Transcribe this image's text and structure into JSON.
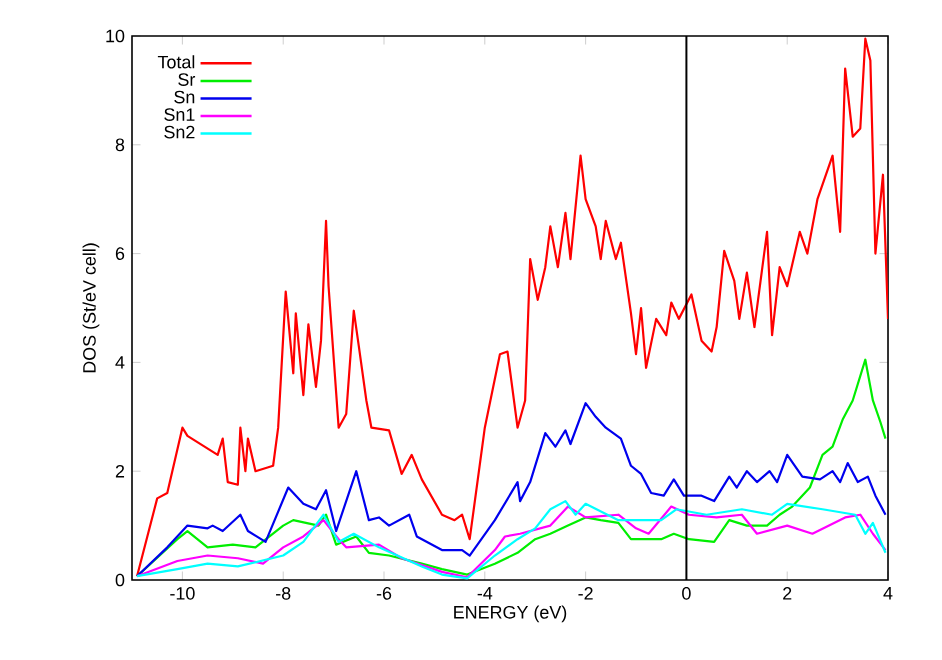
{
  "chart_data": {
    "type": "line",
    "xlabel": "ENERGY (eV)",
    "ylabel": "DOS (St/eV cell)",
    "xlim": [
      -11,
      4
    ],
    "ylim": [
      0,
      10
    ],
    "xticks": [
      -10,
      -8,
      -6,
      -4,
      -2,
      0,
      2,
      4
    ],
    "yticks": [
      0,
      2,
      4,
      6,
      8,
      10
    ],
    "legend": "top left",
    "marker": "none",
    "line_style": "solid",
    "grid": false,
    "ref_lines": [
      {
        "axis": "x",
        "value": 0,
        "color": "#000000"
      }
    ],
    "series": [
      {
        "name": "Total",
        "color": "#ff0000",
        "x": [
          -10.9,
          -10.5,
          -10.3,
          -10,
          -9.9,
          -9.3,
          -9.2,
          -9.1,
          -8.9,
          -8.85,
          -8.75,
          -8.7,
          -8.55,
          -8.2,
          -8.1,
          -7.95,
          -7.8,
          -7.75,
          -7.6,
          -7.5,
          -7.35,
          -7.25,
          -7.15,
          -7.1,
          -6.9,
          -6.75,
          -6.6,
          -6.5,
          -6.35,
          -6.25,
          -5.9,
          -5.65,
          -5.45,
          -5.25,
          -4.85,
          -4.6,
          -4.45,
          -4.3,
          -4.0,
          -3.7,
          -3.55,
          -3.35,
          -3.2,
          -3.1,
          -2.95,
          -2.8,
          -2.7,
          -2.55,
          -2.4,
          -2.3,
          -2.1,
          -2.0,
          -1.8,
          -1.7,
          -1.6,
          -1.4,
          -1.3,
          -1.1,
          -1.0,
          -0.9,
          -0.8,
          -0.6,
          -0.4,
          -0.3,
          -0.15,
          0.1,
          0.3,
          0.5,
          0.6,
          0.75,
          0.95,
          1.05,
          1.2,
          1.35,
          1.6,
          1.7,
          1.85,
          2.0,
          2.25,
          2.4,
          2.6,
          2.75,
          2.9,
          3.05,
          3.15,
          3.3,
          3.45,
          3.55,
          3.65,
          3.75,
          3.9,
          4.0
        ],
        "values": [
          0.07,
          1.5,
          1.6,
          2.8,
          2.65,
          2.3,
          2.6,
          1.8,
          1.75,
          2.8,
          2.0,
          2.6,
          2.0,
          2.1,
          2.8,
          5.3,
          3.8,
          4.9,
          3.4,
          4.7,
          3.55,
          4.4,
          6.6,
          5.4,
          2.8,
          3.05,
          4.95,
          4.3,
          3.3,
          2.8,
          2.75,
          1.95,
          2.3,
          1.85,
          1.2,
          1.1,
          1.2,
          0.75,
          2.8,
          4.15,
          4.2,
          2.8,
          3.3,
          5.9,
          5.15,
          5.75,
          6.5,
          5.75,
          6.75,
          5.9,
          7.8,
          7.0,
          6.5,
          5.9,
          6.6,
          5.9,
          6.2,
          4.9,
          4.15,
          5.0,
          3.9,
          4.8,
          4.5,
          5.1,
          4.8,
          5.25,
          4.4,
          4.2,
          4.65,
          6.05,
          5.5,
          4.8,
          5.65,
          4.65,
          6.4,
          4.5,
          5.75,
          5.4,
          6.4,
          6.0,
          7.0,
          7.4,
          7.8,
          6.4,
          9.4,
          8.15,
          8.3,
          9.95,
          9.55,
          6.0,
          7.45,
          4.8
        ]
      },
      {
        "name": "Sr",
        "color": "#00ee00",
        "x": [
          -10.9,
          -10.1,
          -9.9,
          -9.5,
          -9.0,
          -8.55,
          -8.0,
          -7.8,
          -7.3,
          -7.15,
          -6.95,
          -6.55,
          -6.3,
          -5.9,
          -5.25,
          -4.85,
          -4.35,
          -3.8,
          -3.35,
          -3.0,
          -2.7,
          -2.35,
          -2.0,
          -1.7,
          -1.35,
          -1.1,
          -0.5,
          -0.25,
          0.05,
          0.55,
          0.85,
          1.2,
          1.6,
          1.85,
          2.1,
          2.45,
          2.7,
          2.9,
          3.1,
          3.3,
          3.55,
          3.7,
          3.85,
          3.95
        ],
        "values": [
          0.07,
          0.75,
          0.9,
          0.6,
          0.65,
          0.6,
          1.0,
          1.1,
          1.0,
          1.2,
          0.65,
          0.8,
          0.5,
          0.45,
          0.3,
          0.2,
          0.1,
          0.3,
          0.5,
          0.75,
          0.85,
          1.0,
          1.15,
          1.1,
          1.05,
          0.75,
          0.75,
          0.85,
          0.75,
          0.7,
          1.1,
          1.0,
          1.0,
          1.2,
          1.35,
          1.7,
          2.3,
          2.45,
          2.95,
          3.3,
          4.05,
          3.3,
          2.9,
          2.6
        ]
      },
      {
        "name": "Sn",
        "color": "#0000ee",
        "x": [
          -10.9,
          -10.3,
          -9.9,
          -9.5,
          -9.4,
          -9.2,
          -8.85,
          -8.7,
          -8.35,
          -7.9,
          -7.6,
          -7.35,
          -7.15,
          -6.95,
          -6.55,
          -6.3,
          -6.1,
          -5.9,
          -5.5,
          -5.35,
          -4.85,
          -4.45,
          -4.3,
          -3.8,
          -3.35,
          -3.3,
          -3.1,
          -2.8,
          -2.6,
          -2.4,
          -2.3,
          -2.0,
          -1.8,
          -1.6,
          -1.3,
          -1.1,
          -0.9,
          -0.7,
          -0.45,
          -0.25,
          -0.05,
          0.3,
          0.55,
          0.85,
          1.0,
          1.2,
          1.4,
          1.65,
          1.8,
          2.0,
          2.3,
          2.65,
          2.9,
          3.05,
          3.2,
          3.4,
          3.6,
          3.75,
          3.95
        ],
        "values": [
          0.07,
          0.6,
          1.0,
          0.95,
          1.0,
          0.9,
          1.2,
          0.9,
          0.7,
          1.7,
          1.4,
          1.3,
          1.65,
          0.9,
          2.0,
          1.1,
          1.15,
          1.0,
          1.2,
          0.8,
          0.55,
          0.55,
          0.45,
          1.1,
          1.8,
          1.45,
          1.8,
          2.7,
          2.45,
          2.75,
          2.5,
          3.25,
          3.0,
          2.8,
          2.6,
          2.1,
          1.95,
          1.6,
          1.55,
          1.85,
          1.55,
          1.55,
          1.45,
          1.9,
          1.7,
          2.0,
          1.8,
          2.0,
          1.8,
          2.3,
          1.9,
          1.85,
          2.0,
          1.8,
          2.15,
          1.8,
          1.9,
          1.55,
          1.2
        ]
      },
      {
        "name": "Sn1",
        "color": "#ff00ff",
        "x": [
          -10.9,
          -10.1,
          -9.5,
          -8.9,
          -8.4,
          -8.0,
          -7.6,
          -7.2,
          -6.9,
          -6.75,
          -6.1,
          -5.65,
          -4.85,
          -4.35,
          -3.8,
          -3.6,
          -3.3,
          -2.7,
          -2.35,
          -2.0,
          -1.35,
          -1.0,
          -0.75,
          -0.3,
          0.05,
          0.6,
          1.1,
          1.4,
          2.0,
          2.5,
          3.15,
          3.45,
          3.7,
          3.95
        ],
        "values": [
          0.07,
          0.35,
          0.45,
          0.4,
          0.3,
          0.6,
          0.8,
          1.1,
          0.75,
          0.6,
          0.65,
          0.4,
          0.15,
          0.05,
          0.55,
          0.8,
          0.85,
          1.0,
          1.35,
          1.15,
          1.2,
          0.95,
          0.85,
          1.35,
          1.2,
          1.15,
          1.2,
          0.85,
          1.0,
          0.85,
          1.15,
          1.2,
          0.85,
          0.55
        ]
      },
      {
        "name": "Sn2",
        "color": "#00ffff",
        "x": [
          -10.9,
          -10.1,
          -9.5,
          -8.9,
          -8.0,
          -7.6,
          -7.2,
          -6.9,
          -6.6,
          -6.1,
          -5.25,
          -4.85,
          -4.35,
          -3.8,
          -3.35,
          -3.0,
          -2.7,
          -2.4,
          -2.2,
          -2.0,
          -1.35,
          -0.5,
          -0.2,
          0.4,
          1.1,
          1.7,
          2.0,
          2.7,
          3.35,
          3.55,
          3.7,
          3.95
        ],
        "values": [
          0.07,
          0.2,
          0.3,
          0.25,
          0.45,
          0.7,
          1.2,
          0.7,
          0.85,
          0.6,
          0.25,
          0.1,
          0.03,
          0.45,
          0.75,
          0.95,
          1.3,
          1.45,
          1.2,
          1.4,
          1.1,
          1.1,
          1.3,
          1.2,
          1.3,
          1.2,
          1.4,
          1.3,
          1.2,
          0.85,
          1.05,
          0.5
        ]
      }
    ]
  }
}
